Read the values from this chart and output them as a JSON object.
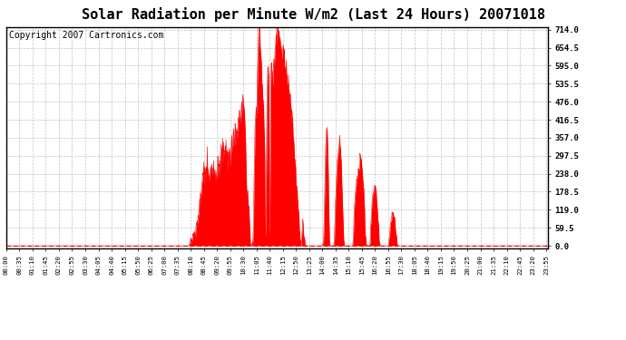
{
  "title": "Solar Radiation per Minute W/m2 (Last 24 Hours) 20071018",
  "copyright_text": "Copyright 2007 Cartronics.com",
  "y_max": 714.0,
  "y_ticks": [
    0.0,
    59.5,
    119.0,
    178.5,
    238.0,
    297.5,
    357.0,
    416.5,
    476.0,
    535.5,
    595.0,
    654.5,
    714.0
  ],
  "fill_color": "#FF0000",
  "line_color": "#FF0000",
  "dashed_line_color": "#FF0000",
  "background_color": "#FFFFFF",
  "grid_color": "#999999",
  "title_fontsize": 11,
  "copyright_fontsize": 7,
  "tick_interval_minutes": 35
}
